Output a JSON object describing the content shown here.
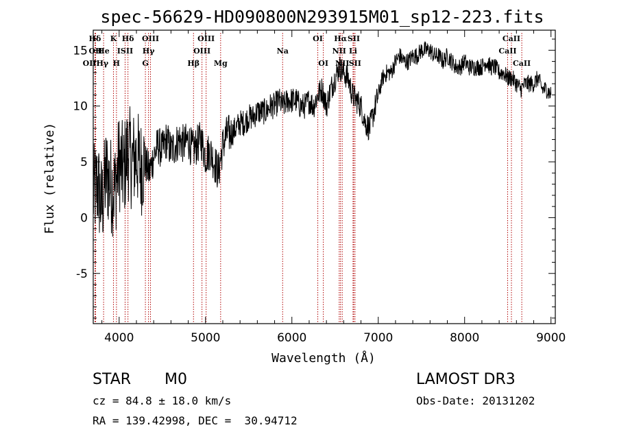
{
  "chart_data": {
    "type": "line",
    "title": "spec-56629-HD090800N293915M01_sp12-223.fits",
    "xlabel": "Wavelength (Å)",
    "ylabel": "Flux (relative)",
    "xlim": [
      3700,
      9050
    ],
    "ylim": [
      -9.5,
      16.8
    ],
    "xticks": [
      4000,
      5000,
      6000,
      7000,
      8000,
      9000
    ],
    "yticks": [
      -5,
      0,
      5,
      10,
      15
    ],
    "series": [
      {
        "name": "spectrum",
        "x": [
          3700,
          3750,
          3800,
          3850,
          3900,
          3950,
          4000,
          4050,
          4100,
          4150,
          4200,
          4250,
          4300,
          4350,
          4400,
          4450,
          4500,
          4550,
          4600,
          4650,
          4700,
          4750,
          4800,
          4850,
          4900,
          4950,
          5000,
          5050,
          5100,
          5150,
          5200,
          5250,
          5300,
          5350,
          5400,
          5450,
          5500,
          5550,
          5600,
          5650,
          5700,
          5750,
          5800,
          5850,
          5900,
          5950,
          6000,
          6050,
          6100,
          6150,
          6200,
          6250,
          6300,
          6350,
          6400,
          6450,
          6500,
          6550,
          6600,
          6650,
          6700,
          6750,
          6800,
          6850,
          6900,
          6950,
          7000,
          7050,
          7100,
          7150,
          7200,
          7250,
          7300,
          7350,
          7400,
          7450,
          7500,
          7550,
          7600,
          7650,
          7700,
          7750,
          7800,
          7850,
          7900,
          7950,
          8000,
          8050,
          8100,
          8150,
          8200,
          8250,
          8300,
          8350,
          8400,
          8450,
          8500,
          8550,
          8600,
          8650,
          8700,
          8750,
          8800,
          8850,
          8900,
          8950,
          9000
        ],
        "y": [
          2.0,
          3.0,
          1.0,
          4.0,
          3.0,
          2.5,
          5.0,
          4.0,
          6.0,
          5.0,
          5.5,
          4.5,
          5.0,
          4.0,
          5.5,
          6.5,
          6.0,
          7.0,
          6.0,
          6.5,
          7.0,
          6.5,
          7.0,
          6.0,
          6.5,
          7.0,
          5.5,
          6.0,
          5.0,
          4.0,
          6.5,
          7.5,
          7.5,
          8.0,
          8.5,
          8.5,
          9.0,
          9.0,
          9.5,
          9.5,
          9.5,
          10.0,
          10.0,
          10.5,
          10.0,
          10.5,
          10.5,
          10.5,
          10.0,
          10.0,
          10.5,
          10.0,
          11.0,
          11.5,
          10.0,
          11.5,
          12.5,
          13.5,
          13.0,
          12.5,
          11.0,
          10.5,
          10.0,
          8.5,
          8.0,
          9.5,
          11.0,
          12.5,
          13.0,
          13.0,
          14.0,
          14.5,
          14.0,
          14.0,
          14.5,
          14.5,
          15.0,
          15.0,
          15.0,
          14.5,
          14.5,
          14.0,
          14.5,
          14.0,
          13.5,
          13.5,
          14.0,
          13.5,
          13.5,
          13.5,
          13.5,
          14.0,
          13.5,
          13.5,
          13.0,
          13.0,
          12.5,
          12.5,
          12.0,
          11.5,
          12.0,
          12.0,
          12.0,
          12.5,
          11.5,
          11.5,
          11.0
        ]
      }
    ],
    "lines": [
      {
        "name": "Hδ",
        "wl": 3720,
        "row": 0
      },
      {
        "name": "K",
        "wl": 3934,
        "row": 0
      },
      {
        "name": "Hδ",
        "wl": 4102,
        "row": 0
      },
      {
        "name": "OIII",
        "wl": 4363,
        "row": 0
      },
      {
        "name": "OIII",
        "wl": 5007,
        "row": 0
      },
      {
        "name": "OI",
        "wl": 6300,
        "row": 0
      },
      {
        "name": "Hα",
        "wl": 6563,
        "row": 0
      },
      {
        "name": "SII",
        "wl": 6716,
        "row": 0
      },
      {
        "name": "CaII",
        "wl": 8542,
        "row": 0
      },
      {
        "name": "OII",
        "wl": 3727,
        "row": 1
      },
      {
        "name": "He",
        "wl": 3820,
        "row": 1
      },
      {
        "name": "ISII",
        "wl": 4069,
        "row": 1
      },
      {
        "name": "Hγ",
        "wl": 4340,
        "row": 1
      },
      {
        "name": "OIII",
        "wl": 4959,
        "row": 1
      },
      {
        "name": "Na",
        "wl": 5893,
        "row": 1
      },
      {
        "name": "NII",
        "wl": 6548,
        "row": 1
      },
      {
        "name": "Li",
        "wl": 6708,
        "row": 1
      },
      {
        "name": "CaII",
        "wl": 8498,
        "row": 1
      },
      {
        "name": "OIIHγ",
        "wl": 3727,
        "row": 2
      },
      {
        "name": "H",
        "wl": 3969,
        "row": 2
      },
      {
        "name": "G",
        "wl": 4304,
        "row": 2
      },
      {
        "name": "Hβ",
        "wl": 4861,
        "row": 2
      },
      {
        "name": "Mg",
        "wl": 5175,
        "row": 2
      },
      {
        "name": "OI",
        "wl": 6364,
        "row": 2
      },
      {
        "name": "NII",
        "wl": 6583,
        "row": 2
      },
      {
        "name": "SII",
        "wl": 6731,
        "row": 2
      },
      {
        "name": "CaII",
        "wl": 8662,
        "row": 2
      }
    ]
  },
  "info": {
    "object_class": "STAR",
    "subclass": "M0",
    "survey": "LAMOST DR3",
    "redshift": "cz = 84.8 ± 18.0 km/s",
    "obs_date": "Obs-Date: 20131202",
    "coords": "RA = 139.42998, DEC =  30.94712"
  }
}
